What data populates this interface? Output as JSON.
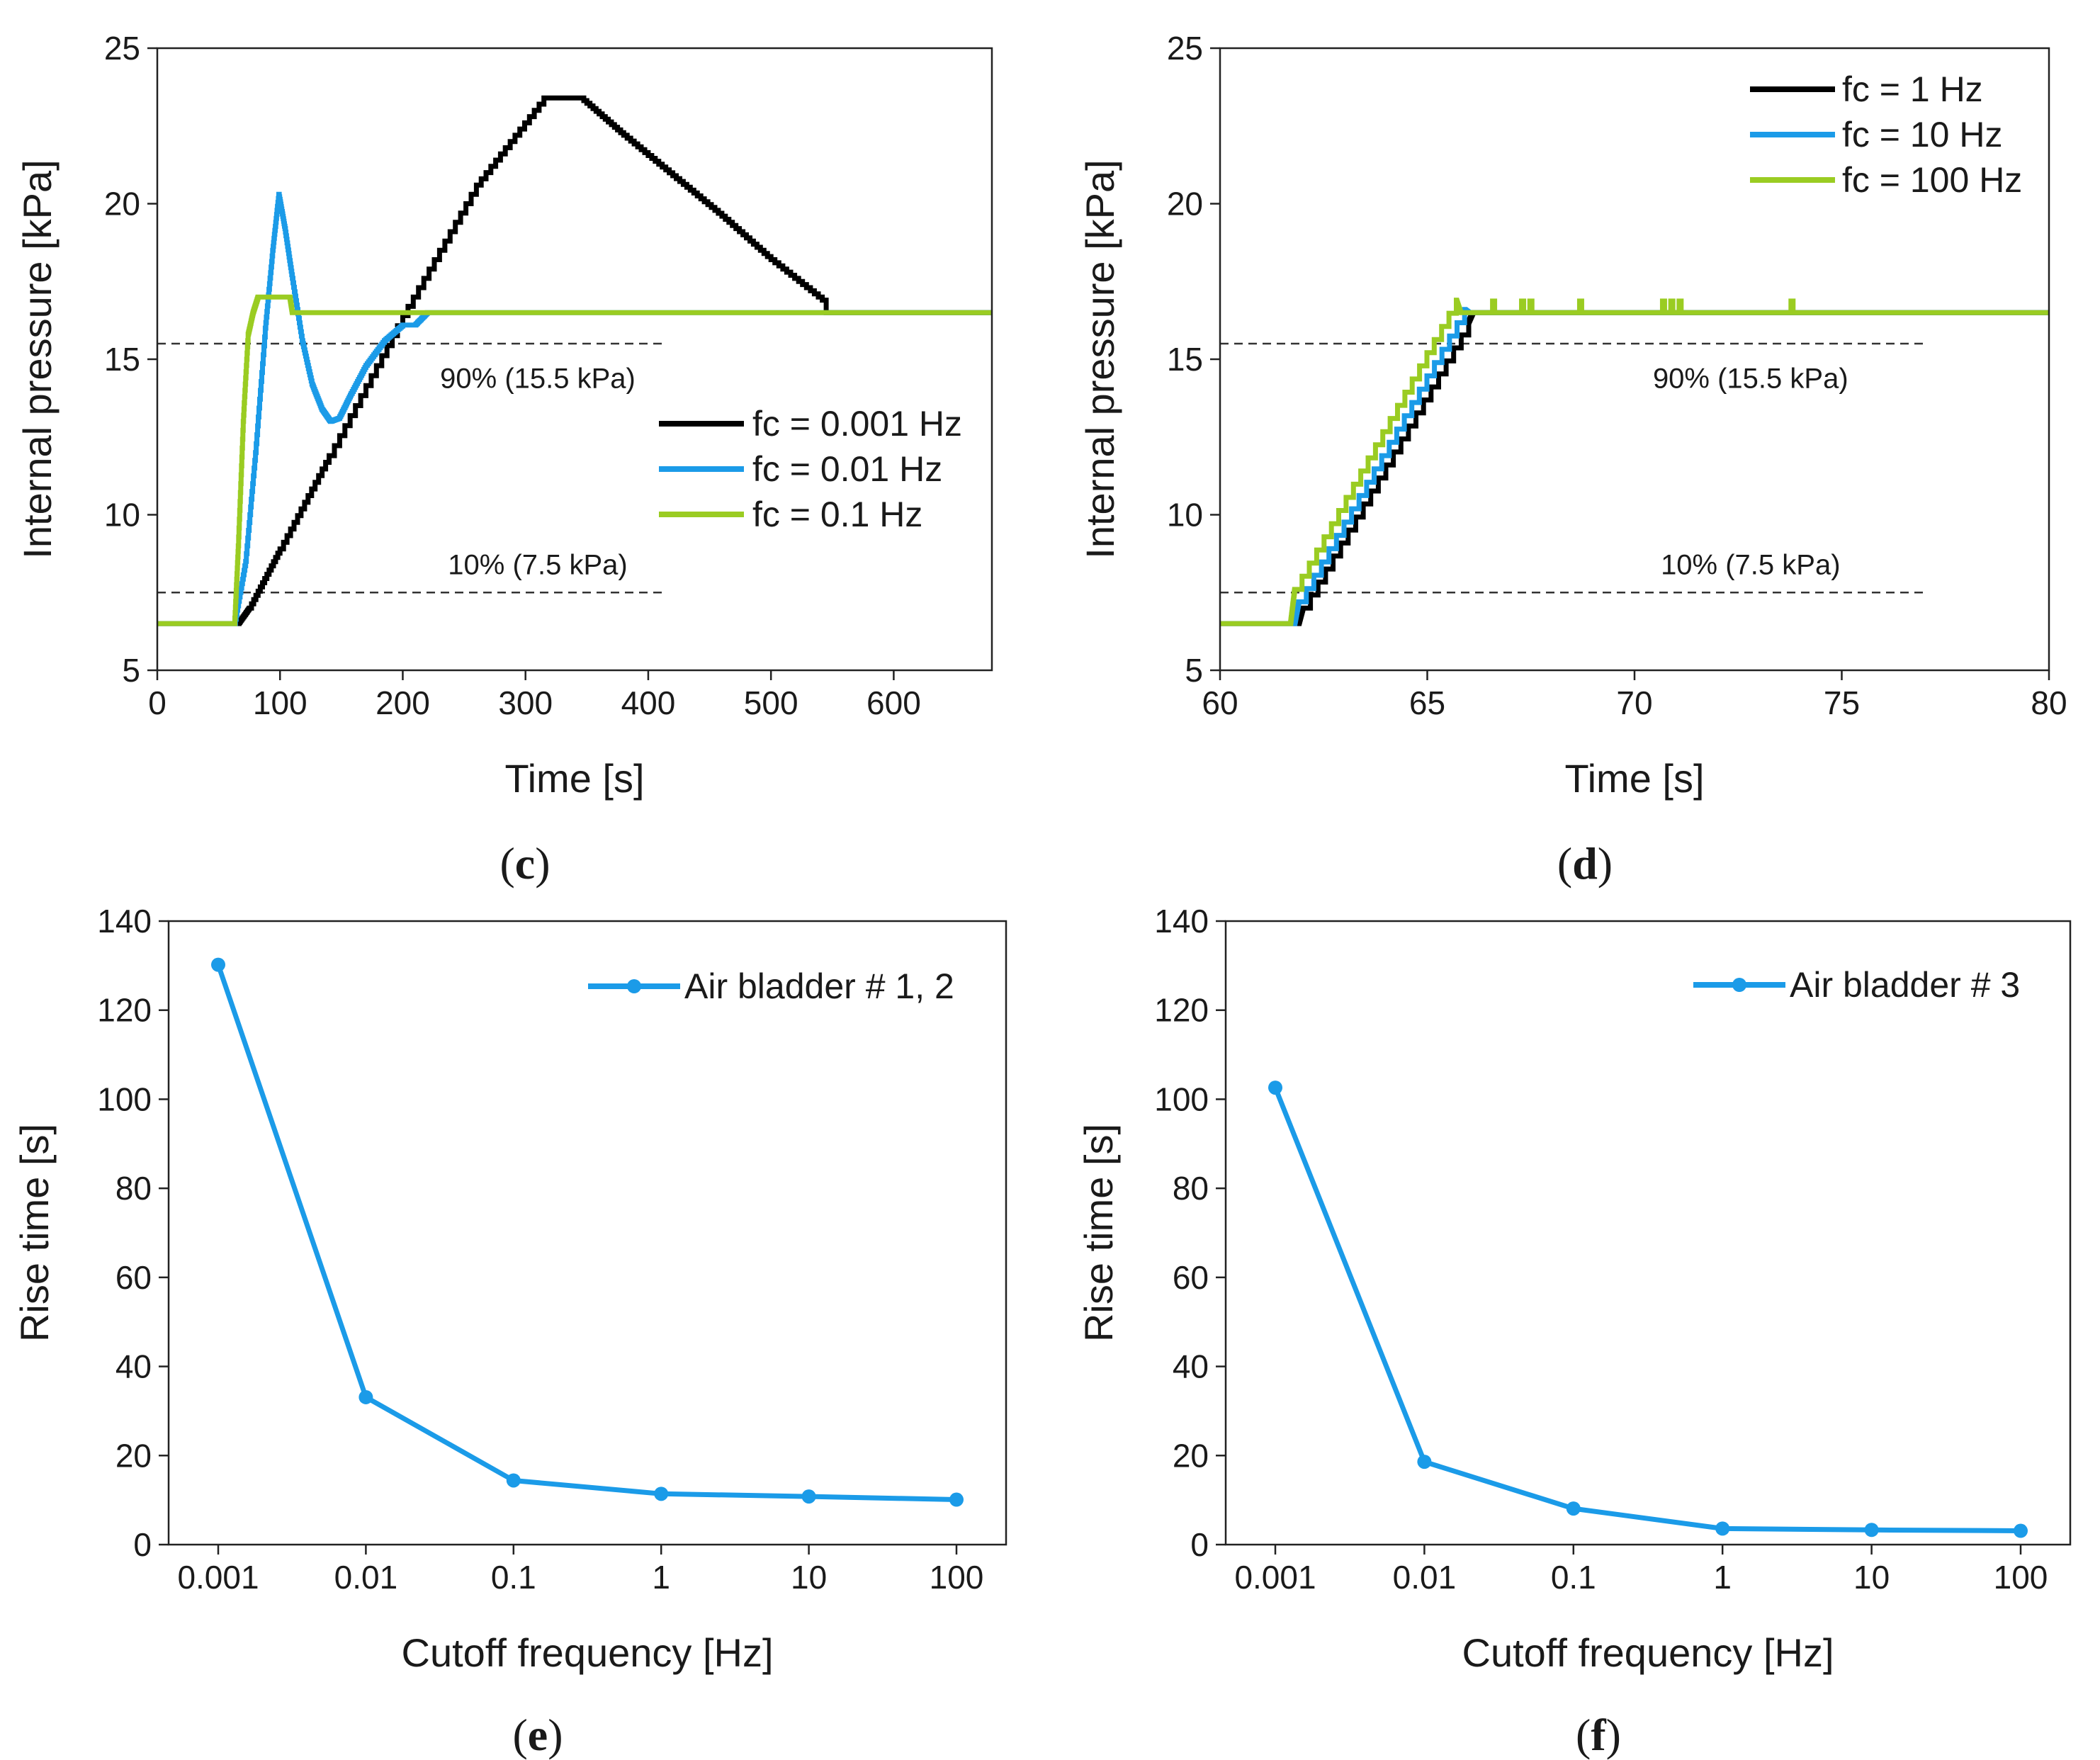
{
  "chart_data": [
    {
      "id": "c",
      "type": "line",
      "panel_label": [
        "(",
        "c",
        ")"
      ],
      "xlabel": "Time [s]",
      "ylabel": "Internal pressure [kPa]",
      "xlim": [
        0,
        680
      ],
      "ylim": [
        5,
        25
      ],
      "xticks": [
        0,
        100,
        200,
        300,
        400,
        500,
        600
      ],
      "yticks": [
        5,
        10,
        15,
        20,
        25
      ],
      "grid": false,
      "legend_position": "right-middle",
      "reference_lines": [
        {
          "y": 15.5,
          "x_end": 412,
          "label": "90% (15.5 kPa)",
          "label_x": 310,
          "label_y": 14.4
        },
        {
          "y": 7.5,
          "x_end": 412,
          "label": "10% (7.5 kPa)",
          "label_x": 310,
          "label_y": 8.4
        }
      ],
      "series": [
        {
          "name": "fc = 0.001 Hz",
          "color": "#000000",
          "x": [
            0,
            66,
            75,
            100,
            140,
            200,
            260,
            315,
            345,
            380,
            420,
            460,
            500,
            545,
            545,
            680
          ],
          "y": [
            6.5,
            6.5,
            7.0,
            8.9,
            11.9,
            16.4,
            20.6,
            23.4,
            23.4,
            22.2,
            20.9,
            19.6,
            18.2,
            16.8,
            16.5,
            16.5
          ]
        },
        {
          "name": "fc = 0.01 Hz",
          "color": "#1b9be8",
          "x": [
            0,
            63,
            72,
            80,
            88,
            94,
            99,
            104,
            110,
            118,
            126,
            134,
            141,
            148,
            158,
            170,
            185,
            200,
            210,
            220,
            680
          ],
          "y": [
            6.5,
            6.5,
            8.5,
            12.0,
            16.0,
            18.5,
            20.3,
            19.2,
            17.6,
            15.6,
            14.2,
            13.4,
            13.0,
            13.1,
            13.9,
            14.8,
            15.6,
            16.1,
            16.1,
            16.5,
            16.5
          ]
        },
        {
          "name": "fc = 0.1 Hz",
          "color": "#9acc22",
          "x": [
            0,
            63,
            66,
            70,
            74,
            78,
            82,
            108,
            110,
            680
          ],
          "y": [
            6.5,
            6.5,
            9.0,
            13.0,
            15.8,
            16.5,
            17.0,
            17.0,
            16.5,
            16.5
          ]
        }
      ]
    },
    {
      "id": "d",
      "type": "line",
      "panel_label": [
        "(",
        "d",
        ")"
      ],
      "xlabel": "Time [s]",
      "ylabel": "Internal pressure [kPa]",
      "xlim": [
        60,
        80
      ],
      "ylim": [
        5,
        25
      ],
      "xticks": [
        60,
        65,
        70,
        75,
        80
      ],
      "yticks": [
        5,
        10,
        15,
        20,
        25
      ],
      "grid": false,
      "legend_position": "top-right",
      "reference_lines": [
        {
          "y": 15.5,
          "x_end": 77,
          "label": "90% (15.5 kPa)",
          "label_x": 72.8,
          "label_y": 14.4
        },
        {
          "y": 7.5,
          "x_end": 77,
          "label": "10% (7.5 kPa)",
          "label_x": 72.8,
          "label_y": 8.4
        }
      ],
      "series": [
        {
          "name": "fc = 1 Hz",
          "color": "#000000",
          "x": [
            60,
            61.9,
            62.0,
            66.0,
            66.1,
            80
          ],
          "y": [
            6.5,
            6.5,
            7.0,
            16.2,
            16.5,
            16.5
          ]
        },
        {
          "name": "fc = 10 Hz",
          "color": "#1b9be8",
          "x": [
            60,
            61.8,
            61.9,
            65.9,
            66.0,
            80
          ],
          "y": [
            6.5,
            6.5,
            7.2,
            16.6,
            16.5,
            16.5
          ]
        },
        {
          "name": "fc = 100 Hz",
          "color": "#9acc22",
          "x": [
            60,
            61.7,
            61.8,
            65.7,
            65.8,
            80
          ],
          "y": [
            6.5,
            6.5,
            7.6,
            16.9,
            16.5,
            16.5
          ],
          "spikes_x": [
            66.6,
            67.3,
            67.5,
            68.7,
            70.7,
            70.9,
            71.1,
            73.8
          ]
        }
      ]
    },
    {
      "id": "e",
      "type": "line",
      "panel_label": [
        "(",
        "e",
        ")"
      ],
      "xlabel": "Cutoff frequency [Hz]",
      "ylabel": "Rise time [s]",
      "categories": [
        "0.001",
        "0.01",
        "0.1",
        "1",
        "10",
        "100"
      ],
      "ylim": [
        0,
        140
      ],
      "yticks": [
        0,
        20,
        40,
        60,
        80,
        100,
        120,
        140
      ],
      "grid": false,
      "legend_position": "top-right",
      "series": [
        {
          "name": "Air bladder # 1, 2",
          "color": "#1b9be8",
          "values": [
            130.2,
            33.1,
            14.4,
            11.4,
            10.8,
            10.1
          ]
        }
      ]
    },
    {
      "id": "f",
      "type": "line",
      "panel_label": [
        "(",
        "f",
        ")"
      ],
      "xlabel": "Cutoff frequency [Hz]",
      "ylabel": "Rise time [s]",
      "categories": [
        "0.001",
        "0.01",
        "0.1",
        "1",
        "10",
        "100"
      ],
      "ylim": [
        0,
        140
      ],
      "yticks": [
        0,
        20,
        40,
        60,
        80,
        100,
        120,
        140
      ],
      "grid": false,
      "legend_position": "top-right",
      "series": [
        {
          "name": "Air bladder # 3",
          "color": "#1b9be8",
          "values": [
            102.6,
            18.6,
            8.1,
            3.6,
            3.3,
            3.1
          ]
        }
      ]
    }
  ]
}
